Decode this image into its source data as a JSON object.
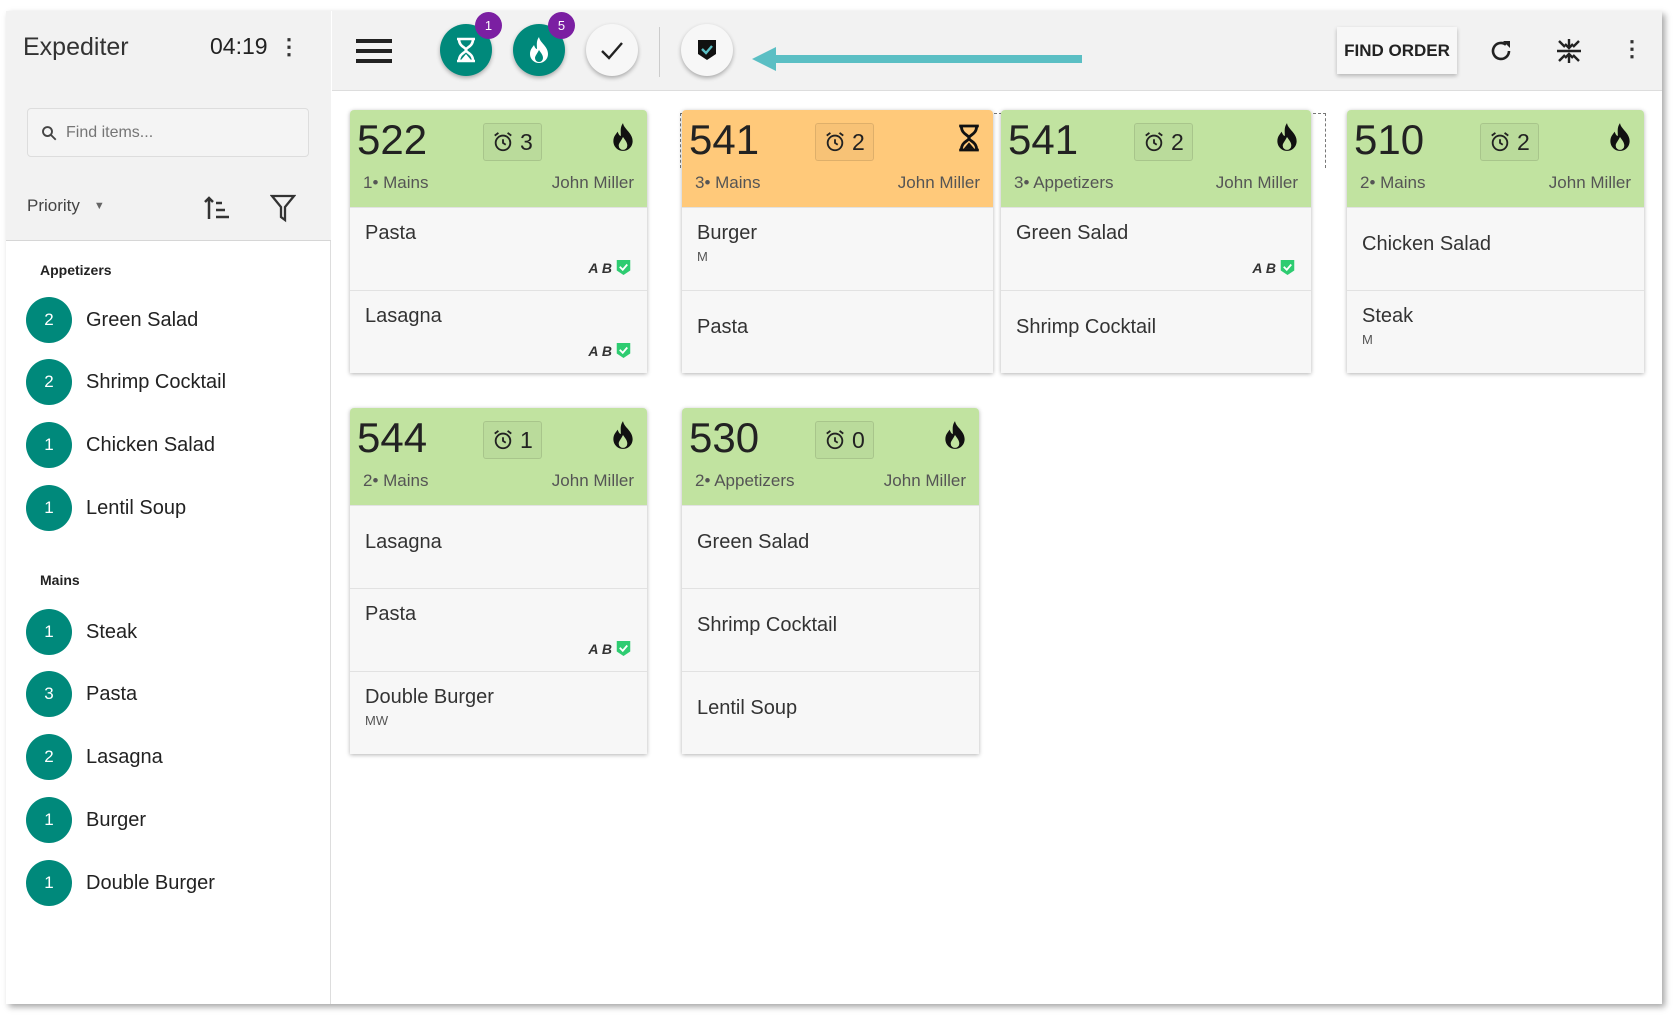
{
  "sidebar": {
    "title": "Expediter",
    "clock": "04:19",
    "search_placeholder": "Find items...",
    "sort_label": "Priority",
    "categories": [
      {
        "name": "Appetizers",
        "items": [
          {
            "count": "2",
            "name": "Green Salad"
          },
          {
            "count": "2",
            "name": "Shrimp Cocktail"
          },
          {
            "count": "1",
            "name": "Chicken Salad"
          },
          {
            "count": "1",
            "name": "Lentil Soup"
          }
        ]
      },
      {
        "name": "Mains",
        "items": [
          {
            "count": "1",
            "name": "Steak"
          },
          {
            "count": "3",
            "name": "Pasta"
          },
          {
            "count": "2",
            "name": "Lasagna"
          },
          {
            "count": "1",
            "name": "Burger"
          },
          {
            "count": "1",
            "name": "Double Burger"
          }
        ]
      }
    ]
  },
  "toolbar": {
    "waiting_badge": "1",
    "fire_badge": "5",
    "find_order_label": "FIND ORDER",
    "arrow_color": "#5bbfc4"
  },
  "colors": {
    "teal": "#00897b",
    "green_header": "#c1e3a0",
    "orange_header": "#ffc97a",
    "badge": "#7b1fa2"
  },
  "orders": [
    {
      "number": "522",
      "timer": "3",
      "status": "fire",
      "category": "1• Mains",
      "server": "John Miller",
      "items": [
        {
          "name": "Pasta",
          "mod": "",
          "ab": "A B"
        },
        {
          "name": "Lasagna",
          "mod": "",
          "ab": "A B"
        }
      ]
    },
    {
      "number": "541",
      "timer": "2",
      "status": "waiting",
      "category": "3• Mains",
      "server": "John Miller",
      "items": [
        {
          "name": "Burger",
          "mod": "M",
          "ab": ""
        },
        {
          "name": "Pasta",
          "mod": "",
          "ab": ""
        }
      ]
    },
    {
      "number": "541",
      "timer": "2",
      "status": "fire",
      "category": "3• Appetizers",
      "server": "John Miller",
      "items": [
        {
          "name": "Green Salad",
          "mod": "",
          "ab": "A B"
        },
        {
          "name": "Shrimp Cocktail",
          "mod": "",
          "ab": ""
        }
      ]
    },
    {
      "number": "510",
      "timer": "2",
      "status": "fire",
      "category": "2• Mains",
      "server": "John Miller",
      "items": [
        {
          "name": "Chicken Salad",
          "mod": "",
          "ab": ""
        },
        {
          "name": "Steak",
          "mod": "M",
          "ab": ""
        }
      ]
    },
    {
      "number": "544",
      "timer": "1",
      "status": "fire",
      "category": "2• Mains",
      "server": "John Miller",
      "items": [
        {
          "name": "Lasagna",
          "mod": "",
          "ab": ""
        },
        {
          "name": "Pasta",
          "mod": "",
          "ab": "A B"
        },
        {
          "name": "Double Burger",
          "mod": "MW",
          "ab": ""
        }
      ]
    },
    {
      "number": "530",
      "timer": "0",
      "status": "fire",
      "category": "2• Appetizers",
      "server": "John Miller",
      "items": [
        {
          "name": "Green Salad",
          "mod": "",
          "ab": ""
        },
        {
          "name": "Shrimp Cocktail",
          "mod": "",
          "ab": ""
        },
        {
          "name": "Lentil Soup",
          "mod": "",
          "ab": ""
        }
      ]
    }
  ]
}
